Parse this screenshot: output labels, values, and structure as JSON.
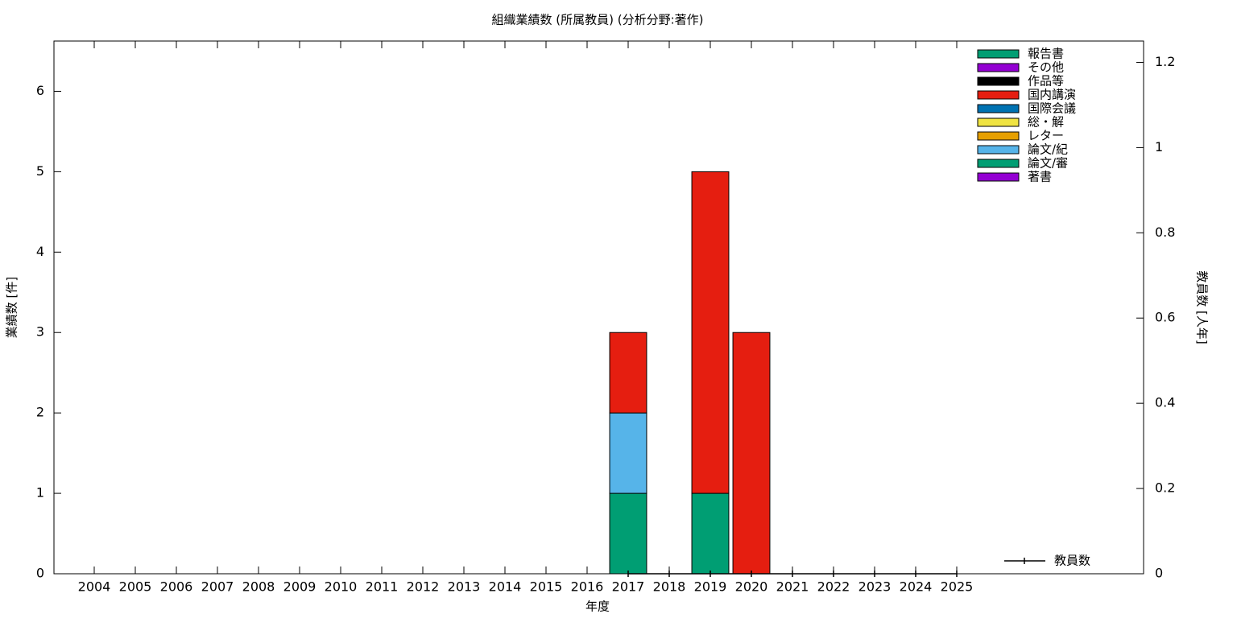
{
  "chart_data": {
    "type": "bar",
    "stacked": true,
    "title": "組織業績数 (所属教員) (分析分野:著作)",
    "xlabel": "年度",
    "ylabel": "業績数 [件]",
    "y2label": "教員数 [人年]",
    "categories": [
      "2004",
      "2005",
      "2006",
      "2007",
      "2008",
      "2009",
      "2010",
      "2011",
      "2012",
      "2013",
      "2014",
      "2015",
      "2016",
      "2017",
      "2018",
      "2019",
      "2020",
      "2021",
      "2022",
      "2023",
      "2024",
      "2025"
    ],
    "ylim": [
      0,
      6.625
    ],
    "yticks": [
      0,
      1,
      2,
      3,
      4,
      5,
      6
    ],
    "y2lim": [
      0,
      1.25
    ],
    "y2ticks": [
      0,
      0.2,
      0.4,
      0.6,
      0.8,
      1,
      1.2
    ],
    "grid": false,
    "legend": "upper right",
    "series": [
      {
        "name": "著書",
        "color": "#9400d3",
        "values": [
          0,
          0,
          0,
          0,
          0,
          0,
          0,
          0,
          0,
          0,
          0,
          0,
          0,
          0,
          0,
          0,
          0,
          0,
          0,
          0,
          0,
          0
        ]
      },
      {
        "name": "論文/審",
        "color": "#009e73",
        "values": [
          0,
          0,
          0,
          0,
          0,
          0,
          0,
          0,
          0,
          0,
          0,
          0,
          0,
          1,
          0,
          1,
          0,
          0,
          0,
          0,
          0,
          0
        ]
      },
      {
        "name": "論文/紀",
        "color": "#56b4e9",
        "values": [
          0,
          0,
          0,
          0,
          0,
          0,
          0,
          0,
          0,
          0,
          0,
          0,
          0,
          1,
          0,
          0,
          0,
          0,
          0,
          0,
          0,
          0
        ]
      },
      {
        "name": "レター",
        "color": "#e69f00",
        "values": [
          0,
          0,
          0,
          0,
          0,
          0,
          0,
          0,
          0,
          0,
          0,
          0,
          0,
          0,
          0,
          0,
          0,
          0,
          0,
          0,
          0,
          0
        ]
      },
      {
        "name": "総・解",
        "color": "#f0e442",
        "values": [
          0,
          0,
          0,
          0,
          0,
          0,
          0,
          0,
          0,
          0,
          0,
          0,
          0,
          0,
          0,
          0,
          0,
          0,
          0,
          0,
          0,
          0
        ]
      },
      {
        "name": "国際会議",
        "color": "#0072b2",
        "values": [
          0,
          0,
          0,
          0,
          0,
          0,
          0,
          0,
          0,
          0,
          0,
          0,
          0,
          0,
          0,
          0,
          0,
          0,
          0,
          0,
          0,
          0
        ]
      },
      {
        "name": "国内講演",
        "color": "#e51e10",
        "values": [
          0,
          0,
          0,
          0,
          0,
          0,
          0,
          0,
          0,
          0,
          0,
          0,
          0,
          1,
          0,
          4,
          3,
          0,
          0,
          0,
          0,
          0
        ]
      },
      {
        "name": "作品等",
        "color": "#000000",
        "values": [
          0,
          0,
          0,
          0,
          0,
          0,
          0,
          0,
          0,
          0,
          0,
          0,
          0,
          0,
          0,
          0,
          0,
          0,
          0,
          0,
          0,
          0
        ]
      },
      {
        "name": "その他",
        "color": "#9400d3",
        "values": [
          0,
          0,
          0,
          0,
          0,
          0,
          0,
          0,
          0,
          0,
          0,
          0,
          0,
          0,
          0,
          0,
          0,
          0,
          0,
          0,
          0,
          0
        ]
      },
      {
        "name": "報告書",
        "color": "#009e73",
        "values": [
          0,
          0,
          0,
          0,
          0,
          0,
          0,
          0,
          0,
          0,
          0,
          0,
          0,
          0,
          0,
          0,
          0,
          0,
          0,
          0,
          0,
          0
        ]
      },
      {
        "name": "教員数",
        "color": "#000000",
        "type": "line",
        "axis": "y2",
        "values": [
          null,
          null,
          null,
          null,
          null,
          null,
          null,
          null,
          null,
          null,
          null,
          null,
          null,
          0,
          0,
          0,
          0,
          0,
          0,
          0,
          0,
          0
        ]
      }
    ]
  }
}
